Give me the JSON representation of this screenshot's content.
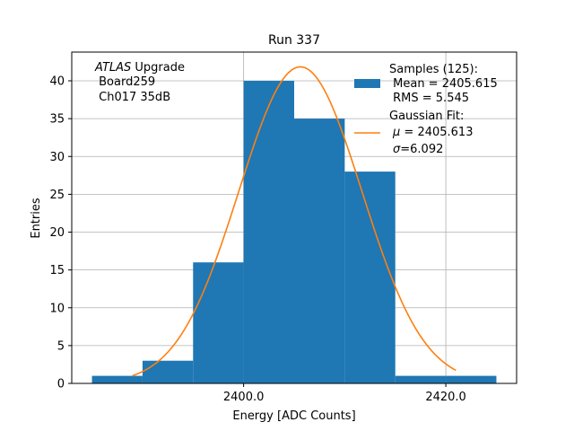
{
  "chart_data": {
    "type": "bar",
    "title": "Run 337",
    "xlabel": "Energy [ADC Counts]",
    "ylabel": "Entries",
    "xlim": [
      2383.0,
      2427.0
    ],
    "ylim": [
      0,
      43.8
    ],
    "grid": true,
    "x_ticks": [
      2400.0,
      2420.0
    ],
    "x_tick_labels": [
      "2400.0",
      "2420.0"
    ],
    "y_ticks": [
      0,
      5,
      10,
      15,
      20,
      25,
      30,
      35,
      40
    ],
    "y_tick_labels": [
      "0",
      "5",
      "10",
      "15",
      "20",
      "25",
      "30",
      "35",
      "40"
    ],
    "bins": [
      {
        "x0": 2385,
        "x1": 2390,
        "count": 1
      },
      {
        "x0": 2390,
        "x1": 2395,
        "count": 3
      },
      {
        "x0": 2395,
        "x1": 2400,
        "count": 16
      },
      {
        "x0": 2400,
        "x1": 2405,
        "count": 40
      },
      {
        "x0": 2405,
        "x1": 2410,
        "count": 35
      },
      {
        "x0": 2410,
        "x1": 2415,
        "count": 28
      },
      {
        "x0": 2415,
        "x1": 2420,
        "count": 1
      },
      {
        "x0": 2420,
        "x1": 2425,
        "count": 1
      }
    ],
    "fit": {
      "type": "gaussian",
      "mu": 2405.613,
      "sigma": 6.092,
      "amplitude": 41.85,
      "x_range": [
        2389.0,
        2421.0
      ]
    },
    "annotation": {
      "italic_part": "ATLAS",
      "rest": " Upgrade",
      "line2": " Board259",
      "line3": " Ch017 35dB"
    },
    "legend": {
      "placement": "top-right",
      "histogram_lines": [
        "Samples (125):",
        " Mean = 2405.615",
        " RMS = 5.545"
      ],
      "fit_title": "Gaussian Fit:",
      "fit_mu_symbol": "μ",
      "fit_mu_rest": " = 2405.613",
      "fit_sigma_symbol": "σ",
      "fit_sigma_rest": "=6.092"
    },
    "colors": {
      "bars": "#1f77b4",
      "fit": "#ff7f0e",
      "grid": "#b0b0b0"
    }
  }
}
